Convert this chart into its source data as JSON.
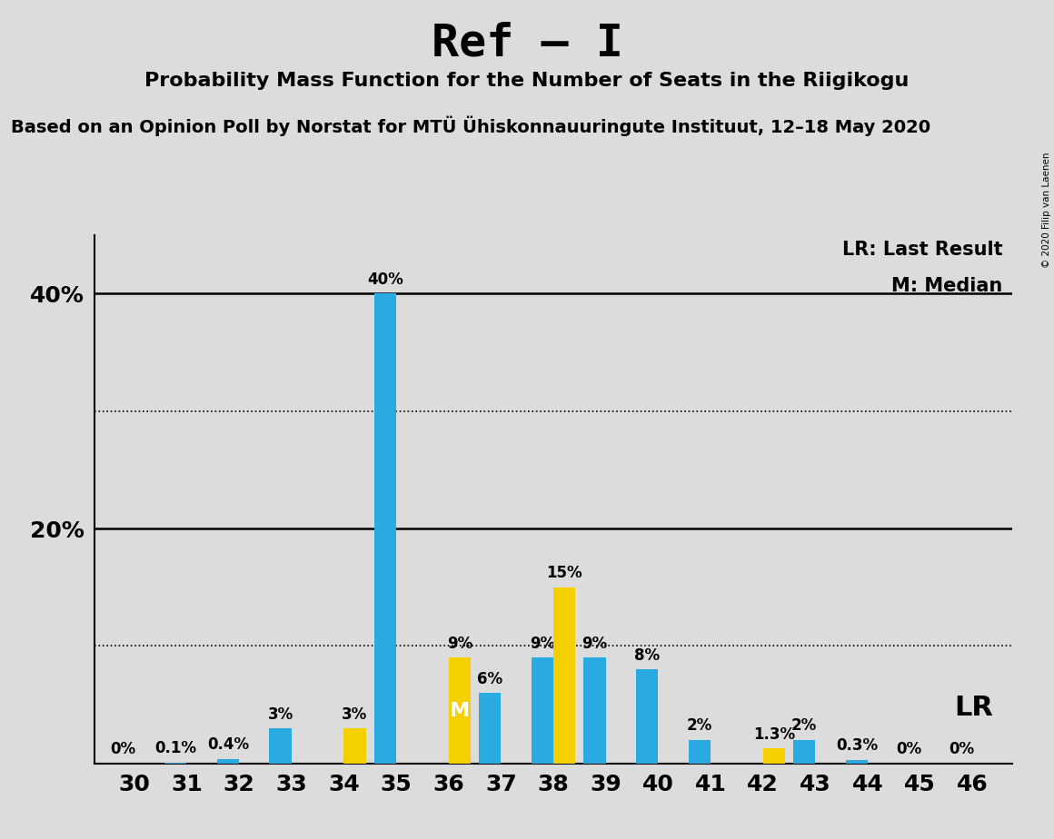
{
  "title": "Ref – I",
  "subtitle": "Probability Mass Function for the Number of Seats in the Riigikogu",
  "source": "Based on an Opinion Poll by Norstat for MTÜ Ühiskonnauuringute Instituut, 12–18 May 2020",
  "copyright": "© 2020 Filip van Laenen",
  "seats": [
    30,
    31,
    32,
    33,
    34,
    35,
    36,
    37,
    38,
    39,
    40,
    41,
    42,
    43,
    44,
    45,
    46
  ],
  "blue_values": [
    0.0,
    0.1,
    0.4,
    3.0,
    0.0,
    40.0,
    0.0,
    6.0,
    9.0,
    9.0,
    8.0,
    2.0,
    0.0,
    2.0,
    0.3,
    0.0,
    0.0
  ],
  "yellow_values": [
    0.0,
    0.0,
    0.0,
    0.0,
    3.0,
    0.0,
    9.0,
    0.0,
    15.0,
    0.0,
    0.0,
    0.0,
    1.3,
    0.0,
    0.0,
    0.0,
    0.0
  ],
  "blue_labels": [
    "0%",
    "0.1%",
    "0.4%",
    "3%",
    "",
    "40%",
    "",
    "6%",
    "9%",
    "9%",
    "8%",
    "2%",
    "",
    "2%",
    "0.3%",
    "0%",
    "0%"
  ],
  "yellow_labels": [
    "",
    "",
    "",
    "",
    "3%",
    "",
    "9%",
    "",
    "15%",
    "",
    "",
    "",
    "1.3%",
    "",
    "",
    "",
    ""
  ],
  "blue_color": "#29ABE2",
  "yellow_color": "#F5D000",
  "background_color": "#DCDCDC",
  "median_seat": 36,
  "last_result_seat": 35,
  "ylim": [
    0,
    45
  ],
  "yticks": [
    20,
    40
  ],
  "ytick_labels": [
    "20%",
    "40%"
  ],
  "solid_lines": [
    20,
    40
  ],
  "dotted_lines": [
    10,
    30
  ],
  "legend_lr": "LR: Last Result",
  "legend_m": "M: Median",
  "lr_label": "LR",
  "bar_width": 0.42
}
